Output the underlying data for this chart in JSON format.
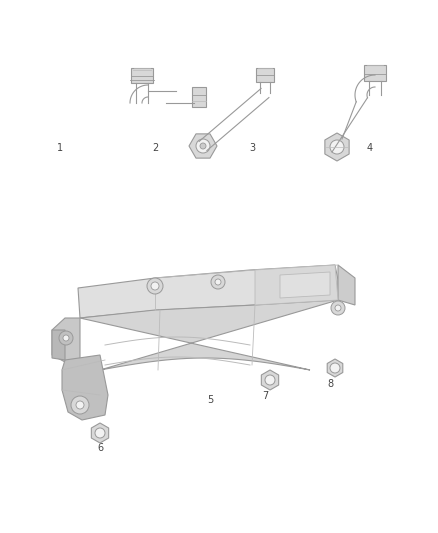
{
  "bg_color": "#ffffff",
  "lc": "#999999",
  "lc_d": "#777777",
  "lc_l": "#bbbbbb",
  "fc_body": "#e8e8e8",
  "fc_light": "#f2f2f2",
  "fc_mid": "#d8d8d8",
  "label_color": "#444444",
  "label_fs": 7.0,
  "lw": 0.8
}
